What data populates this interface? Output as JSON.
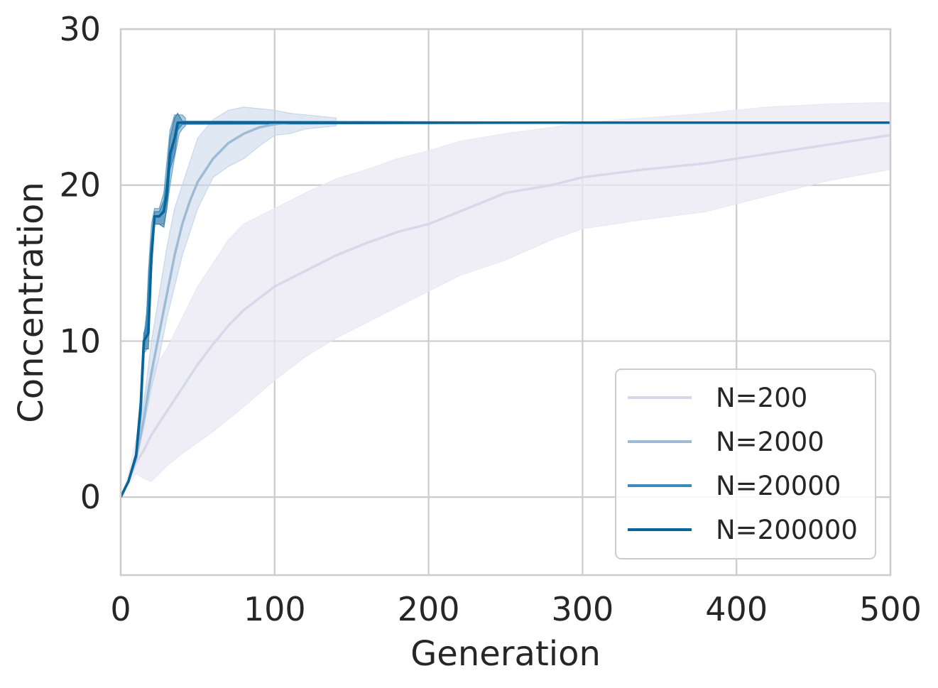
{
  "chart_data": {
    "type": "line",
    "title": "",
    "xlabel": "Generation",
    "ylabel": "Concentration",
    "xlim": [
      0,
      500
    ],
    "ylim": [
      -5,
      30
    ],
    "xticks": [
      0,
      100,
      200,
      300,
      400,
      500
    ],
    "yticks": [
      0,
      10,
      20,
      30
    ],
    "grid": true,
    "legend_position": "lower-right",
    "series": [
      {
        "name": "N=200",
        "color": "#d9d8ea",
        "band_color": "#e9e8f3",
        "x": [
          0,
          5,
          10,
          15,
          20,
          30,
          40,
          50,
          60,
          70,
          80,
          100,
          120,
          140,
          160,
          180,
          200,
          220,
          250,
          280,
          300,
          340,
          380,
          420,
          460,
          500
        ],
        "y": [
          0,
          1,
          2.2,
          3.0,
          4.0,
          5.5,
          7,
          8.5,
          9.8,
          11,
          12,
          13.5,
          14.5,
          15.5,
          16.3,
          17,
          17.5,
          18.3,
          19.5,
          20,
          20.5,
          21,
          21.4,
          22,
          22.6,
          23.2
        ],
        "lower": [
          0,
          0.8,
          1.5,
          1.2,
          1.0,
          2.0,
          2.8,
          3.5,
          4.2,
          5,
          5.8,
          7.5,
          9,
          10.2,
          11.2,
          12.2,
          13.2,
          14.2,
          15.2,
          16.5,
          17.2,
          17.8,
          18.3,
          19.3,
          20.3,
          21
        ],
        "upper": [
          0,
          1.4,
          3.8,
          6.5,
          8.0,
          9.5,
          11.5,
          13.5,
          15,
          16.5,
          17.5,
          18.5,
          19.5,
          20.4,
          21,
          21.7,
          22.2,
          22.8,
          23.3,
          23.7,
          24,
          24.3,
          24.6,
          25,
          25.2,
          25.3
        ]
      },
      {
        "name": "N=2000",
        "color": "#9ebbd6",
        "band_color": "#c6d7e9",
        "x": [
          0,
          5,
          10,
          15,
          20,
          25,
          30,
          35,
          40,
          45,
          50,
          60,
          70,
          80,
          90,
          100,
          110,
          120,
          140
        ],
        "y": [
          0,
          1,
          2.5,
          5,
          8,
          10.5,
          13,
          15.5,
          17.5,
          19,
          20.2,
          21.7,
          22.7,
          23.3,
          23.7,
          23.9,
          24,
          24,
          24
        ],
        "lower": [
          0,
          0.9,
          2.2,
          4.5,
          7,
          9,
          11.5,
          13.5,
          15.5,
          17,
          18.5,
          20.5,
          21.2,
          21.7,
          22.5,
          23.2,
          23.3,
          23.6,
          23.8
        ],
        "upper": [
          0,
          1.1,
          2.9,
          6,
          10,
          13,
          16,
          18.5,
          20,
          21.5,
          23,
          24.2,
          24.8,
          25,
          24.9,
          24.8,
          24.6,
          24.5,
          24.3
        ]
      },
      {
        "name": "N=20000",
        "color": "#3d8bbd",
        "band_color": "#6aa3c8",
        "x": [
          0,
          5,
          10,
          13,
          15,
          17,
          18,
          20,
          22,
          25,
          28,
          30,
          32,
          35,
          38,
          40,
          42
        ],
        "y": [
          0,
          1,
          2.6,
          5.5,
          9.6,
          11,
          13,
          16,
          18,
          18,
          18.4,
          20,
          21.5,
          23,
          24,
          24,
          24
        ],
        "lower": [
          0,
          0.9,
          2.3,
          5,
          9.2,
          9.5,
          11.5,
          15,
          17.5,
          17.5,
          17.5,
          18.5,
          20,
          21.8,
          23.3,
          23.6,
          23.8
        ],
        "upper": [
          0,
          1.1,
          2.9,
          6,
          10.2,
          12,
          14.5,
          17.5,
          18.5,
          18.5,
          19.5,
          21.5,
          23.5,
          24.5,
          24.5,
          24.5,
          24.3
        ]
      },
      {
        "name": "N=200000",
        "color": "#07659a",
        "band_color": "#3b7fae",
        "x": [
          0,
          5,
          10,
          13,
          15,
          18,
          20,
          22,
          25,
          28,
          30,
          32,
          35,
          37,
          40,
          500
        ],
        "y": [
          0,
          1,
          2.7,
          6,
          10,
          10.5,
          15.5,
          18,
          18,
          18.3,
          19.5,
          22,
          23,
          24,
          24,
          24
        ],
        "lower": [
          0,
          0.9,
          2.5,
          5.6,
          9.5,
          9.5,
          14.5,
          17.5,
          17.5,
          17.3,
          18.5,
          21,
          22,
          23.5,
          23.9,
          24
        ],
        "upper": [
          0,
          1.1,
          2.9,
          6.4,
          10.5,
          11.5,
          16.5,
          18.3,
          18.3,
          19,
          20.5,
          23,
          24.3,
          24.6,
          24.1,
          24
        ]
      }
    ]
  }
}
